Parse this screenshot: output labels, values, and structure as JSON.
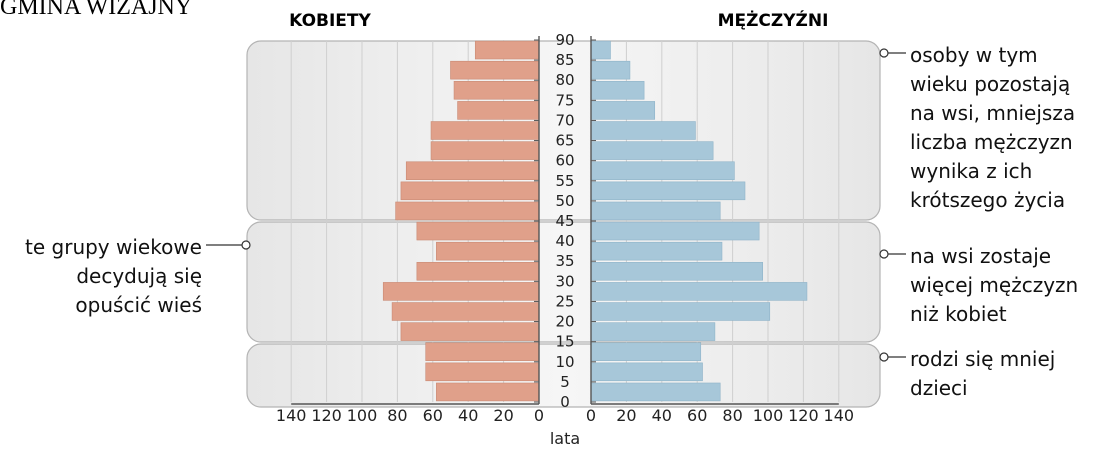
{
  "header": {
    "title": "GMINA WIZAJNY"
  },
  "chart_data": {
    "type": "bar",
    "left_title": "KOBIETY",
    "right_title": "MĘŻCZYŹNI",
    "xlabel": "lata",
    "xlim": [
      0,
      140
    ],
    "x_ticks_left": [
      "140",
      "120",
      "100",
      "80",
      "60",
      "40",
      "20",
      "0"
    ],
    "x_ticks_right": [
      "0",
      "20",
      "40",
      "60",
      "80",
      "100",
      "120",
      "140"
    ],
    "age_labels": [
      "90",
      "85",
      "80",
      "75",
      "70",
      "65",
      "60",
      "55",
      "50",
      "45",
      "40",
      "35",
      "30",
      "25",
      "20",
      "15",
      "10",
      "5",
      "0"
    ],
    "categories": [
      "0",
      "5",
      "10",
      "15",
      "20",
      "25",
      "30",
      "35",
      "40",
      "45",
      "50",
      "55",
      "60",
      "65",
      "70",
      "75",
      "80",
      "85"
    ],
    "series": [
      {
        "name": "KOBIETY",
        "color": "#e0a08a",
        "values": [
          58,
          64,
          64,
          78,
          83,
          88,
          69,
          58,
          69,
          81,
          78,
          75,
          61,
          61,
          46,
          48,
          50,
          36
        ]
      },
      {
        "name": "MĘŻCZYŹNI",
        "color": "#a7c7d9",
        "values": [
          73,
          63,
          62,
          70,
          101,
          122,
          97,
          74,
          95,
          73,
          87,
          81,
          69,
          59,
          36,
          30,
          22,
          11
        ]
      }
    ],
    "grid": true,
    "annotations": [
      {
        "side": "right",
        "lines": [
          "osoby w tym",
          "wieku pozostają",
          "na wsi, mniejsza",
          "liczba mężczyzn",
          "wynika z ich",
          "krótszego życia"
        ]
      },
      {
        "side": "right",
        "lines": [
          "na wsi zostaje",
          "więcej mężczyzn",
          "niż kobiet"
        ]
      },
      {
        "side": "right",
        "lines": [
          "rodzi się mniej",
          "dzieci"
        ]
      },
      {
        "side": "left",
        "lines": [
          "te grupy wiekowe",
          "decydują się",
          "opuścić wieś"
        ]
      }
    ]
  },
  "colors": {
    "women": "#e0a08a",
    "men": "#a7c7d9",
    "panel": "#efefef",
    "panel_edge": "#b4b4b4",
    "axis": "#555555"
  }
}
